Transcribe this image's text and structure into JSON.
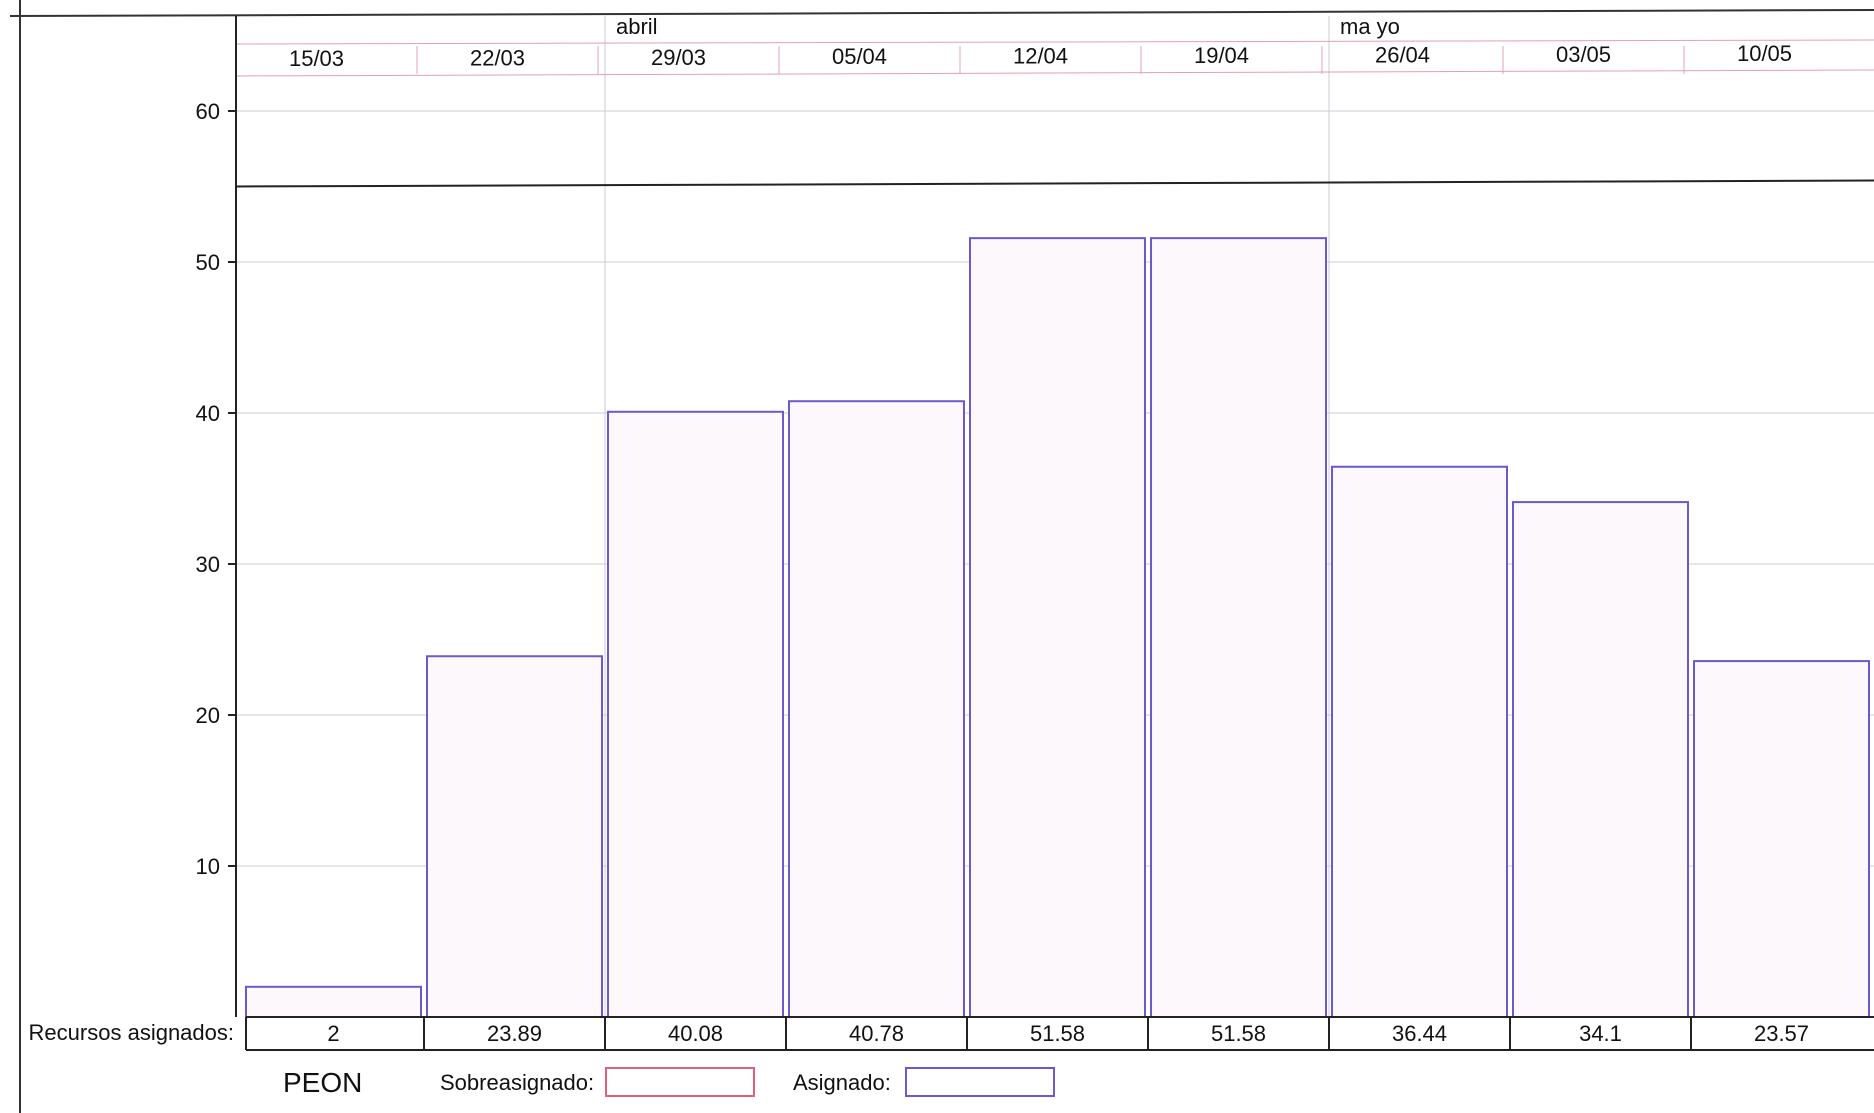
{
  "chart_data": {
    "type": "bar",
    "months": [
      {
        "label": "abril",
        "start": "29/03"
      },
      {
        "label": "ma yo",
        "start": "26/04"
      }
    ],
    "categories": [
      "15/03",
      "22/03",
      "29/03",
      "05/04",
      "12/04",
      "19/04",
      "26/04",
      "03/05",
      "10/05"
    ],
    "series": [
      {
        "name": "Asignado",
        "values": [
          2,
          23.89,
          40.08,
          40.78,
          51.58,
          51.58,
          36.44,
          34.1,
          23.57
        ]
      }
    ],
    "value_labels": [
      "2",
      "23.89",
      "40.08",
      "40.78",
      "51.58",
      "51.58",
      "36.44",
      "34.1",
      "23.57"
    ],
    "yticks": [
      10,
      20,
      30,
      40,
      50,
      60
    ],
    "ylim": [
      0,
      67
    ],
    "max_units_line": 55,
    "grid": true,
    "row_label": "Recursos asignados:",
    "resource": "PEON",
    "legend": [
      {
        "label": "Sobreasignado:",
        "color": "#e0607a"
      },
      {
        "label": "Asignado:",
        "color": "#6a5acd"
      }
    ],
    "colors": {
      "bar_border": "#6a5acd",
      "bar_fill": "#fcf8fc",
      "grid": "#cfc8d4",
      "axis": "#222222"
    }
  }
}
